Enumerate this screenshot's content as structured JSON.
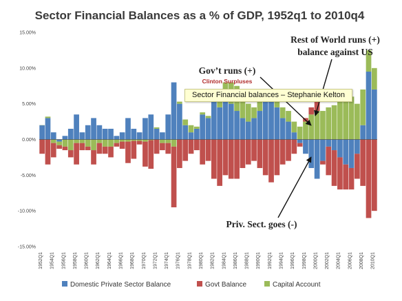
{
  "colors": {
    "private": "#4f81bd",
    "govt": "#c0504d",
    "capital": "#9bbb59",
    "annotation_red": "#b02b2b",
    "tooltip_bg": "#ffffd2"
  },
  "tooltip": {
    "text": "Sector Financial balances – Stephanie Kelton"
  },
  "chart_data": {
    "type": "area",
    "title": "Sector Financial Balances as a % of GDP, 1952q1 to 2010q4",
    "ylim": [
      -15,
      15
    ],
    "y_ticks": [
      "15.00%",
      "10.00%",
      "5.00%",
      "0.00%",
      "-5.00%",
      "-10.00%",
      "-15.00%"
    ],
    "y_tick_values": [
      15,
      10,
      5,
      0,
      -5,
      -10,
      -15
    ],
    "x_ticks": [
      "1952",
      "1954",
      "1956",
      "1958",
      "1960",
      "1962",
      "1964",
      "1966",
      "1968",
      "1970",
      "1972",
      "1974",
      "1976",
      "1978",
      "1980",
      "1982",
      "1984",
      "1986",
      "1988",
      "1990",
      "1992",
      "1994",
      "1996",
      "1998",
      "2000",
      "2002",
      "2004",
      "2006",
      "2008",
      "2010"
    ],
    "x_tick_labels": [
      "1952Q1",
      "1954Q1",
      "1956Q1",
      "1958Q1",
      "1960Q1",
      "1962Q1",
      "1964Q1",
      "1966Q1",
      "1968Q1",
      "1970Q1",
      "1972Q1",
      "1974Q1",
      "1976Q1",
      "1978Q1",
      "1980Q1",
      "1982Q1",
      "1984Q1",
      "1986Q1",
      "1988Q1",
      "1990Q1",
      "1992Q1",
      "1994Q1",
      "1996Q1",
      "1998Q1",
      "2000Q1",
      "2002Q1",
      "2004Q1",
      "2006Q1",
      "2008Q1",
      "2010Q1"
    ],
    "xlim": [
      1952,
      2011
    ],
    "series": [
      {
        "name": "Domestic Private Sector Balance",
        "x": [
          1952,
          1953,
          1954,
          1955,
          1956,
          1957,
          1958,
          1959,
          1960,
          1961,
          1962,
          1963,
          1964,
          1965,
          1966,
          1967,
          1968,
          1969,
          1970,
          1971,
          1972,
          1973,
          1974,
          1975,
          1976,
          1977,
          1978,
          1979,
          1980,
          1981,
          1982,
          1983,
          1984,
          1985,
          1986,
          1987,
          1988,
          1989,
          1990,
          1991,
          1992,
          1993,
          1994,
          1995,
          1996,
          1997,
          1998,
          1999,
          2000,
          2001,
          2002,
          2003,
          2004,
          2005,
          2006,
          2007,
          2008,
          2009,
          2010
        ],
        "values": [
          2.0,
          3.0,
          1.0,
          -0.3,
          0.5,
          1.5,
          3.5,
          1.0,
          2.0,
          3.0,
          2.0,
          1.5,
          1.5,
          0.5,
          1.0,
          3.0,
          1.5,
          1.0,
          3.0,
          3.5,
          1.5,
          1.0,
          3.5,
          8.0,
          5.0,
          2.0,
          1.0,
          1.5,
          3.5,
          3.0,
          6.0,
          4.5,
          5.5,
          5.0,
          4.0,
          3.0,
          2.5,
          3.0,
          4.0,
          6.0,
          6.0,
          4.5,
          3.0,
          2.5,
          1.0,
          -0.5,
          -2.0,
          -4.0,
          -5.5,
          -3.0,
          -1.0,
          -1.5,
          -2.5,
          -3.5,
          -4.0,
          -2.0,
          2.0,
          9.5,
          7.0
        ]
      },
      {
        "name": "Govt Balance",
        "x": [
          1952,
          1953,
          1954,
          1955,
          1956,
          1957,
          1958,
          1959,
          1960,
          1961,
          1962,
          1963,
          1964,
          1965,
          1966,
          1967,
          1968,
          1969,
          1970,
          1971,
          1972,
          1973,
          1974,
          1975,
          1976,
          1977,
          1978,
          1979,
          1980,
          1981,
          1982,
          1983,
          1984,
          1985,
          1986,
          1987,
          1988,
          1989,
          1990,
          1991,
          1992,
          1993,
          1994,
          1995,
          1996,
          1997,
          1998,
          1999,
          2000,
          2001,
          2002,
          2003,
          2004,
          2005,
          2006,
          2007,
          2008,
          2009,
          2010
        ],
        "values": [
          -2.0,
          -3.5,
          -2.0,
          -0.5,
          -0.5,
          -1.0,
          -3.0,
          -1.0,
          -0.5,
          -2.0,
          -1.5,
          -1.0,
          -1.5,
          -0.5,
          -1.0,
          -3.0,
          -2.5,
          -0.5,
          -3.5,
          -4.0,
          -2.0,
          -1.0,
          -1.5,
          -8.5,
          -4.0,
          -3.0,
          -2.0,
          -1.5,
          -3.5,
          -3.0,
          -5.5,
          -6.5,
          -5.0,
          -5.5,
          -5.5,
          -4.0,
          -3.5,
          -3.0,
          -4.0,
          -5.0,
          -6.0,
          -5.0,
          -3.5,
          -3.0,
          -2.0,
          -0.5,
          0.5,
          1.0,
          1.5,
          -0.5,
          -4.0,
          -5.0,
          -4.5,
          -3.5,
          -3.0,
          -3.5,
          -6.5,
          -11.0,
          -10.0
        ]
      },
      {
        "name": "Capital Account",
        "x": [
          1952,
          1953,
          1954,
          1955,
          1956,
          1957,
          1958,
          1959,
          1960,
          1961,
          1962,
          1963,
          1964,
          1965,
          1966,
          1967,
          1968,
          1969,
          1970,
          1971,
          1972,
          1973,
          1974,
          1975,
          1976,
          1977,
          1978,
          1979,
          1980,
          1981,
          1982,
          1983,
          1984,
          1985,
          1986,
          1987,
          1988,
          1989,
          1990,
          1991,
          1992,
          1993,
          1994,
          1995,
          1996,
          1997,
          1998,
          1999,
          2000,
          2001,
          2002,
          2003,
          2004,
          2005,
          2006,
          2007,
          2008,
          2009,
          2010
        ],
        "values": [
          0.0,
          0.2,
          -0.5,
          -0.5,
          -1.0,
          -1.5,
          -0.5,
          -0.5,
          -1.0,
          -1.5,
          -0.5,
          -1.0,
          -1.0,
          -0.5,
          -0.3,
          -0.3,
          -0.2,
          -0.2,
          -0.3,
          -0.1,
          0.2,
          -0.5,
          -0.5,
          -1.0,
          0.3,
          0.8,
          1.0,
          0.3,
          0.3,
          0.3,
          0.0,
          1.2,
          2.5,
          3.0,
          3.5,
          3.5,
          2.5,
          1.5,
          1.3,
          0.0,
          0.5,
          1.0,
          1.5,
          1.5,
          1.5,
          1.8,
          2.5,
          3.5,
          4.0,
          4.0,
          4.5,
          4.8,
          5.5,
          6.0,
          6.0,
          5.0,
          5.0,
          3.0,
          3.0
        ]
      }
    ],
    "annotations": [
      {
        "text": "Rest of World runs (+)",
        "target_year": 2006
      },
      {
        "text": "balance against US",
        "target_year": 2006
      },
      {
        "text": "Gov’t runs (+)",
        "target_year": 2000
      },
      {
        "text": "Clinton Surpluses",
        "target_year": 2000
      },
      {
        "text": "Priv. Sect. goes (-)",
        "target_year": 2000
      }
    ],
    "legend_position": "bottom",
    "grid": false
  }
}
